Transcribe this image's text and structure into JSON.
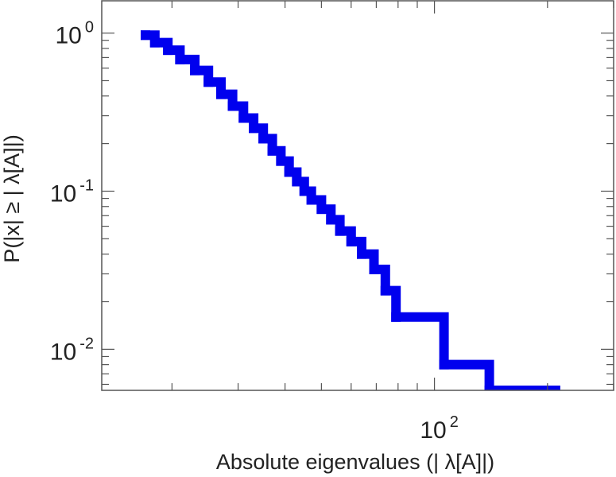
{
  "chart_data": {
    "type": "line",
    "title": "",
    "xlabel": "Absolute eigenvalues (|     λ[A]|)",
    "ylabel": "P(|x|  ≥ | λ[A]|)",
    "xscale": "log",
    "yscale": "log",
    "xlim": [
      13,
      300
    ],
    "ylim": [
      0.0055,
      1.6
    ],
    "grid": false,
    "legend": "none",
    "x_ticks": [
      {
        "value": 100,
        "base": "10",
        "exp": "2"
      }
    ],
    "y_ticks": [
      {
        "value": 1,
        "base": "10",
        "exp": "0"
      },
      {
        "value": 0.1,
        "base": "10",
        "exp": "-1"
      },
      {
        "value": 0.01,
        "base": "10",
        "exp": "-2"
      }
    ],
    "series": [
      {
        "color": "#0000ee",
        "line_style": "step",
        "x": [
          17.0,
          18.0,
          19.5,
          21.0,
          23.0,
          25.0,
          27.0,
          29.0,
          31.0,
          33.0,
          35.0,
          37.0,
          39.0,
          41.0,
          43.0,
          45.0,
          47.0,
          50.0,
          53.0,
          56.0,
          60.0,
          64.0,
          69.0,
          74.0,
          79.0,
          106.0,
          140.0,
          175.0,
          210.0
        ],
        "y": [
          0.97,
          0.87,
          0.78,
          0.68,
          0.58,
          0.49,
          0.41,
          0.345,
          0.29,
          0.25,
          0.215,
          0.18,
          0.155,
          0.132,
          0.115,
          0.1,
          0.088,
          0.077,
          0.066,
          0.056,
          0.048,
          0.04,
          0.032,
          0.0235,
          0.016,
          0.008,
          0.0055,
          0.0055,
          0.0055
        ]
      }
    ]
  }
}
